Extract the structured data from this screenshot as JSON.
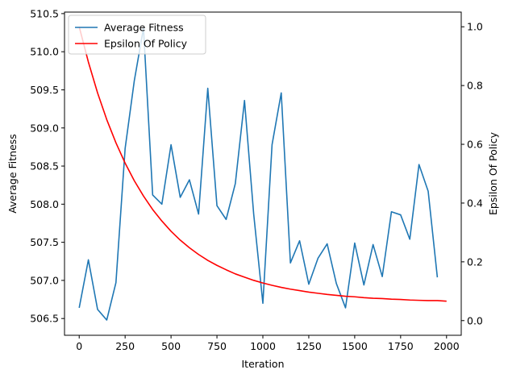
{
  "chart_data": {
    "type": "line",
    "xlabel": "Iteration",
    "ylabel_left": "Average Fitness",
    "ylabel_right": "Epsilon Of Policy",
    "xlim": [
      -80,
      2080
    ],
    "ylim_left": [
      506.28,
      510.52
    ],
    "ylim_right": [
      -0.05,
      1.05
    ],
    "x_ticks": [
      "0",
      "250",
      "500",
      "750",
      "1000",
      "1250",
      "1500",
      "1750",
      "2000"
    ],
    "x_tick_values": [
      0,
      250,
      500,
      750,
      1000,
      1250,
      1500,
      1750,
      2000
    ],
    "y_left_ticks": [
      "506.5",
      "507.0",
      "507.5",
      "508.0",
      "508.5",
      "509.0",
      "509.5",
      "510.0",
      "510.5"
    ],
    "y_left_tick_values": [
      506.5,
      507.0,
      507.5,
      508.0,
      508.5,
      509.0,
      509.5,
      510.0,
      510.5
    ],
    "y_right_ticks": [
      "0.0",
      "0.2",
      "0.4",
      "0.6",
      "0.8",
      "1.0"
    ],
    "y_right_tick_values": [
      0.0,
      0.2,
      0.4,
      0.6,
      0.8,
      1.0
    ],
    "legend_position": "top-left",
    "grid": false,
    "series": [
      {
        "name": "Average Fitness",
        "axis": "left",
        "color": "#1f77b4",
        "x": [
          0,
          50,
          100,
          150,
          200,
          250,
          300,
          350,
          400,
          450,
          500,
          550,
          600,
          650,
          700,
          750,
          800,
          850,
          900,
          950,
          1000,
          1050,
          1100,
          1150,
          1200,
          1250,
          1300,
          1350,
          1400,
          1450,
          1500,
          1550,
          1600,
          1650,
          1700,
          1750,
          1800,
          1850,
          1900,
          1950
        ],
        "y": [
          506.64,
          507.27,
          506.62,
          506.48,
          506.97,
          508.73,
          509.62,
          510.31,
          508.12,
          508.0,
          508.78,
          508.09,
          508.32,
          507.87,
          509.52,
          507.98,
          507.8,
          508.27,
          509.36,
          507.87,
          506.7,
          508.78,
          509.46,
          507.23,
          507.52,
          506.95,
          507.29,
          507.48,
          506.96,
          506.64,
          507.49,
          506.94,
          507.47,
          507.05,
          507.9,
          507.86,
          507.54,
          508.52,
          508.17,
          507.04
        ]
      },
      {
        "name": "Epsilon Of Policy",
        "axis": "right",
        "color": "#ff0000",
        "x": [
          0,
          50,
          100,
          150,
          200,
          250,
          300,
          350,
          400,
          450,
          500,
          550,
          600,
          650,
          700,
          750,
          800,
          850,
          900,
          950,
          1000,
          1050,
          1100,
          1150,
          1200,
          1250,
          1300,
          1350,
          1400,
          1450,
          1500,
          1550,
          1600,
          1650,
          1700,
          1750,
          1800,
          1850,
          1900,
          1950,
          2000
        ],
        "y": [
          1.0,
          0.88,
          0.775,
          0.684,
          0.605,
          0.536,
          0.476,
          0.424,
          0.378,
          0.339,
          0.304,
          0.274,
          0.248,
          0.225,
          0.205,
          0.188,
          0.173,
          0.159,
          0.148,
          0.137,
          0.128,
          0.12,
          0.113,
          0.107,
          0.102,
          0.097,
          0.093,
          0.089,
          0.086,
          0.083,
          0.081,
          0.078,
          0.076,
          0.075,
          0.073,
          0.072,
          0.07,
          0.069,
          0.068,
          0.068,
          0.066
        ]
      }
    ]
  }
}
